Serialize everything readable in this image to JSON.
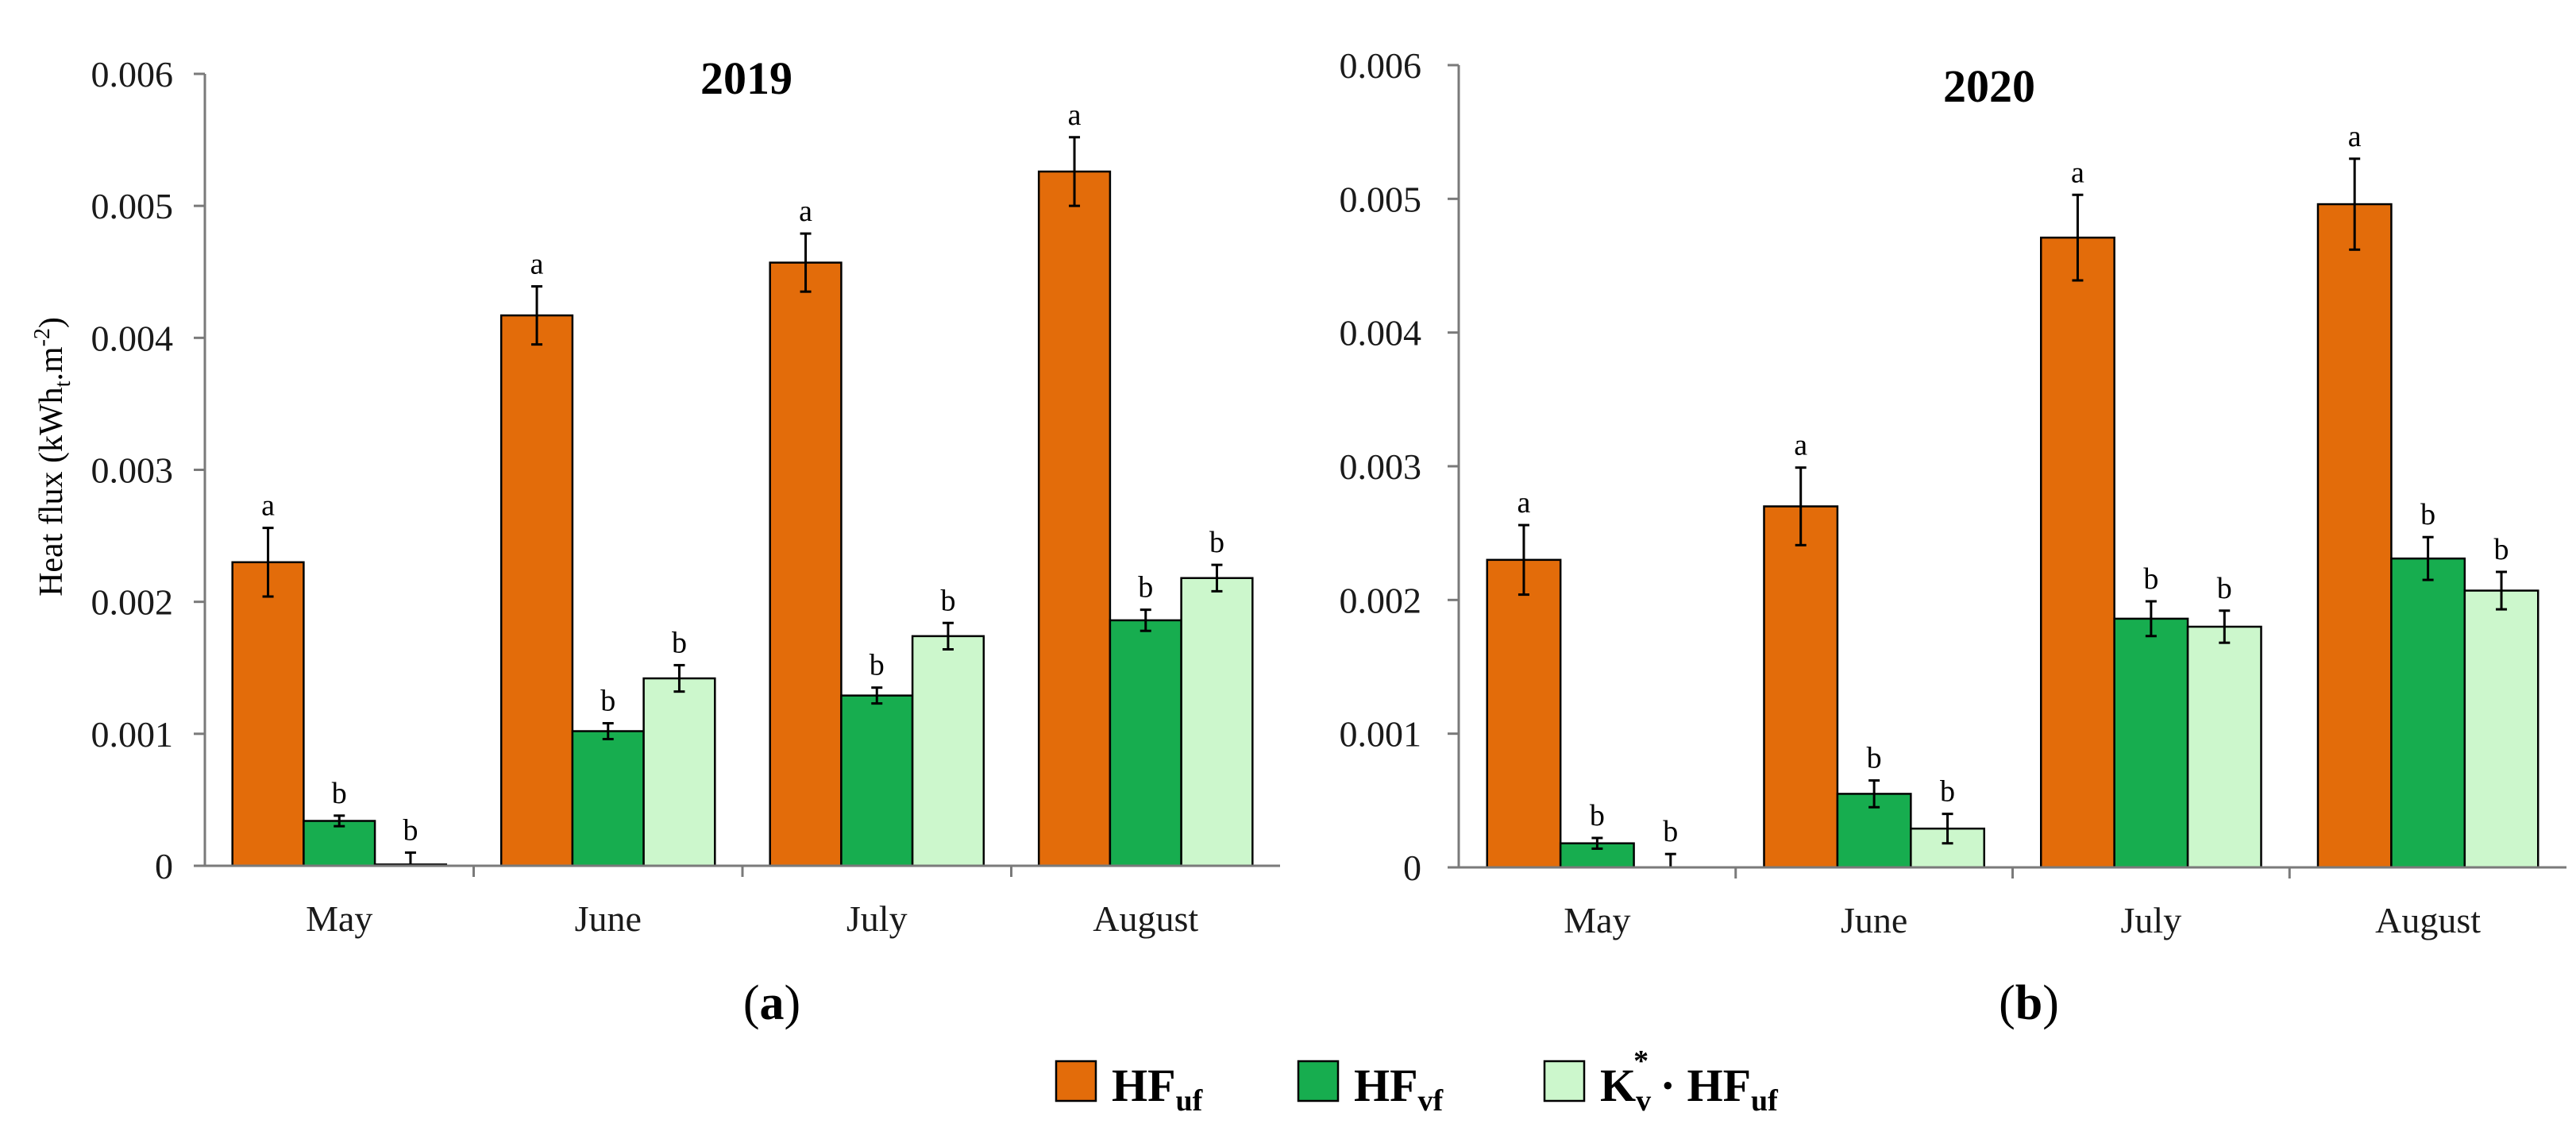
{
  "chart_data": [
    {
      "type": "bar",
      "title": "2019",
      "panel_label": "a",
      "ylabel_main": "Heat flux (kWh",
      "ylabel_sub": "t",
      "ylabel_mid": ".m",
      "ylabel_sup": "-2",
      "ylabel_end": ")",
      "ylim": [
        0,
        0.006
      ],
      "yticks": [
        0,
        0.001,
        0.002,
        0.003,
        0.004,
        0.005,
        0.006
      ],
      "ytick_labels": [
        "0",
        "0.001",
        "0.002",
        "0.003",
        "0.004",
        "0.005",
        "0.006"
      ],
      "categories": [
        "May",
        "June",
        "July",
        "August"
      ],
      "series": [
        {
          "name": "HFuf",
          "values": [
            0.0023,
            0.00417,
            0.00457,
            0.00526
          ],
          "errors": [
            0.00026,
            0.00022,
            0.00022,
            0.00026
          ],
          "letters": [
            "a",
            "a",
            "a",
            "a"
          ]
        },
        {
          "name": "HFvf",
          "values": [
            0.00034,
            0.00102,
            0.00129,
            0.00186
          ],
          "errors": [
            4e-05,
            6e-05,
            6e-05,
            8e-05
          ],
          "letters": [
            "b",
            "b",
            "b",
            "b"
          ]
        },
        {
          "name": "Kv*·HFuf",
          "values": [
            1e-05,
            0.00142,
            0.00174,
            0.00218
          ],
          "errors": [
            9e-05,
            0.0001,
            0.0001,
            0.0001
          ],
          "letters": [
            "b",
            "b",
            "b",
            "b"
          ]
        }
      ]
    },
    {
      "type": "bar",
      "title": "2020",
      "panel_label": "b",
      "ylim": [
        0,
        0.006
      ],
      "yticks": [
        0,
        0.001,
        0.002,
        0.003,
        0.004,
        0.005,
        0.006
      ],
      "ytick_labels": [
        "0",
        "0.001",
        "0.002",
        "0.003",
        "0.004",
        "0.005",
        "0.006"
      ],
      "categories": [
        "May",
        "June",
        "July",
        "August"
      ],
      "series": [
        {
          "name": "HFuf",
          "values": [
            0.0023,
            0.0027,
            0.00471,
            0.00496
          ],
          "errors": [
            0.00026,
            0.00029,
            0.00032,
            0.00034
          ],
          "letters": [
            "a",
            "a",
            "a",
            "a"
          ]
        },
        {
          "name": "HFvf",
          "values": [
            0.00018,
            0.00055,
            0.00186,
            0.00231
          ],
          "errors": [
            4e-05,
            0.0001,
            0.00013,
            0.00016
          ],
          "letters": [
            "b",
            "b",
            "b",
            "b"
          ]
        },
        {
          "name": "Kv*·HFuf",
          "values": [
            0.0,
            0.00029,
            0.0018,
            0.00207
          ],
          "errors": [
            0.0001,
            0.00011,
            0.00012,
            0.00014
          ],
          "letters": [
            "b",
            "b",
            "b",
            "b"
          ]
        }
      ]
    }
  ],
  "legend": {
    "items": [
      {
        "base": "HF",
        "sub": "uf",
        "color": "#e36c0a"
      },
      {
        "base": "HF",
        "sub": "vf",
        "color": "#17ad4f"
      },
      {
        "base": "K",
        "sub": "v",
        "sup": "*",
        "rest": " · HF",
        "sub2": "uf",
        "color": "#ccf7cc"
      }
    ]
  },
  "colors": [
    "#e36c0a",
    "#17ad4f",
    "#ccf7cc"
  ]
}
